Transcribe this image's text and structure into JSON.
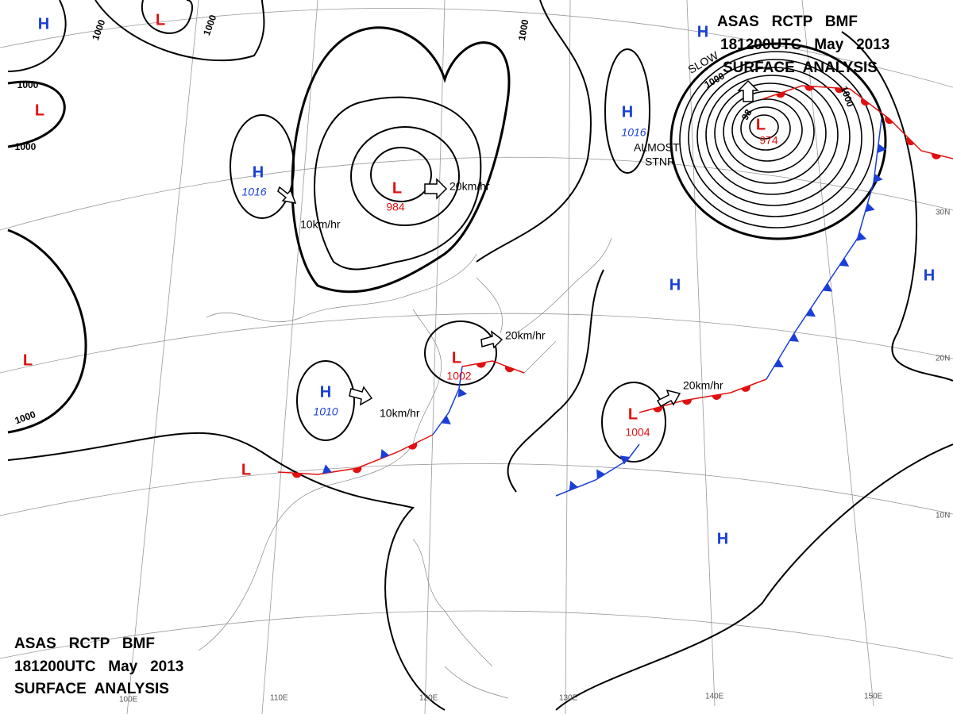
{
  "header_top": [
    "ASAS   RCTP   BMF",
    "181200UTC   May   2013",
    "SURFACE  ANALYSIS"
  ],
  "header_bottom": [
    "ASAS   RCTP   BMF",
    "181200UTC   May   2013",
    "SURFACE  ANALYSIS"
  ],
  "centers": [
    {
      "symbol": "H"
    },
    {
      "symbol": "L"
    },
    {
      "symbol": "L"
    },
    {
      "symbol": "H",
      "pressure": 1016
    },
    {
      "symbol": "L",
      "pressure": 984
    },
    {
      "symbol": "H"
    },
    {
      "symbol": "L",
      "pressure": 974
    },
    {
      "symbol": "H",
      "pressure": 1016
    },
    {
      "symbol": "H"
    },
    {
      "symbol": "H"
    },
    {
      "symbol": "L"
    },
    {
      "symbol": "L",
      "pressure": 1002
    },
    {
      "symbol": "H",
      "pressure": 1010
    },
    {
      "symbol": "L",
      "pressure": 1004
    },
    {
      "symbol": "L"
    },
    {
      "symbol": "H"
    }
  ],
  "isobar_labels": [
    "1000",
    "1000",
    "1000",
    "1000",
    "1000",
    "1000",
    "1000",
    "1000",
    "98"
  ],
  "motion_labels": [
    "20km/hr",
    "10km/hr",
    "20km/hr",
    "10km/hr",
    "20km/hr",
    "SLOW",
    "ALMOST",
    "STNR"
  ],
  "latitude_labels": [
    "30N",
    "20N",
    "10N"
  ],
  "longitude_labels": [
    "100E",
    "110E",
    "120E",
    "130E",
    "140E",
    "150E"
  ]
}
